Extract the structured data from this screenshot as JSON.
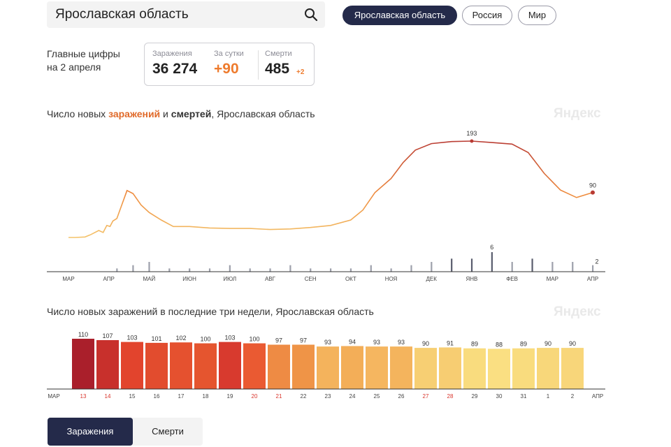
{
  "search": {
    "query": "Ярославская область"
  },
  "region_tabs": [
    {
      "label": "Ярославская область",
      "active": true
    },
    {
      "label": "Россия",
      "active": false
    },
    {
      "label": "Мир",
      "active": false
    }
  ],
  "headline": {
    "line1": "Главные цифры",
    "line2": "на 2 апреля"
  },
  "stats": {
    "infections_label": "Заражения",
    "infections_value": "36 274",
    "daily_label": "За сутки",
    "daily_value": "+90",
    "deaths_label": "Смерти",
    "deaths_value": "485",
    "deaths_delta": "+2"
  },
  "chart1_title": {
    "part1": "Число новых ",
    "part2": "заражений",
    "part3": " и ",
    "part4": "смертей",
    "part5": ", Ярославская область"
  },
  "chart2_title": "Число новых заражений в последние три недели, Ярославская область",
  "brand": "Яндекс",
  "bottom_tabs": [
    {
      "label": "Заражения",
      "active": true
    },
    {
      "label": "Смерти",
      "active": false
    }
  ],
  "colors": {
    "accent_dark": "#242a4a",
    "orange": "#ee7b2d",
    "deaths_bar": "#9da0ab",
    "deaths_bar_dark": "#5a5d6e"
  },
  "chart_data": [
    {
      "type": "line",
      "x_tick_labels": [
        "МАР",
        "АПР",
        "МАЙ",
        "ИЮН",
        "ИЮЛ",
        "АВГ",
        "СЕН",
        "ОКТ",
        "НОЯ",
        "ДЕК",
        "ЯНВ",
        "ФЕВ",
        "МАР",
        "АПР"
      ],
      "series": [
        {
          "name": "заражений",
          "x": [
            0,
            0.16,
            0.41,
            0.56,
            0.75,
            0.86,
            0.95,
            1.03,
            1.1,
            1.2,
            1.32,
            1.45,
            1.6,
            1.8,
            2.0,
            2.3,
            2.6,
            3.0,
            3.5,
            4.0,
            4.5,
            5.0,
            5.5,
            6.0,
            6.5,
            7.0,
            7.3,
            7.6,
            8.0,
            8.3,
            8.6,
            9.0,
            9.5,
            10.0,
            10.5,
            11.0,
            11.4,
            11.8,
            12.2,
            12.6,
            13.0
          ],
          "y": [
            0,
            0,
            1,
            6,
            14,
            10,
            24,
            22,
            33,
            38,
            65,
            94,
            88,
            65,
            50,
            35,
            22,
            22,
            19,
            18,
            18,
            16,
            17,
            20,
            24,
            35,
            55,
            90,
            118,
            150,
            175,
            188,
            192,
            193,
            190,
            187,
            170,
            128,
            95,
            80,
            90
          ]
        },
        {
          "name": "смертей",
          "x": [
            1.2,
            1.6,
            2.0,
            2.5,
            3.0,
            3.5,
            4.0,
            4.5,
            5.0,
            5.5,
            6.0,
            6.5,
            7.0,
            7.5,
            8.0,
            8.5,
            9.0,
            9.5,
            10.0,
            10.5,
            11.0,
            11.5,
            12.0,
            12.5,
            13.0
          ],
          "y": [
            1,
            2,
            3,
            1,
            1,
            1,
            2,
            1,
            1,
            2,
            1,
            1,
            1,
            2,
            1,
            2,
            3,
            4,
            4,
            6,
            3,
            4,
            3,
            3,
            2
          ]
        }
      ],
      "annotations": [
        {
          "label": "193",
          "series": "заражений"
        },
        {
          "label": "90",
          "series": "заражений"
        },
        {
          "label": "6",
          "series": "смертей"
        },
        {
          "label": "2",
          "series": "смертей"
        }
      ],
      "grid": false
    },
    {
      "type": "bar",
      "categories": [
        "13",
        "14",
        "15",
        "16",
        "17",
        "18",
        "19",
        "20",
        "21",
        "22",
        "23",
        "24",
        "25",
        "26",
        "27",
        "28",
        "29",
        "30",
        "31",
        "1",
        "2"
      ],
      "values": [
        110,
        107,
        103,
        101,
        102,
        100,
        103,
        100,
        97,
        97,
        93,
        94,
        93,
        93,
        90,
        91,
        89,
        88,
        89,
        90,
        90
      ],
      "weekend_categories": [
        "13",
        "14",
        "20",
        "21",
        "27",
        "28"
      ],
      "x_edge_labels": [
        "МАР",
        "АПР"
      ],
      "ylim": [
        0,
        115
      ],
      "grid": false
    }
  ]
}
